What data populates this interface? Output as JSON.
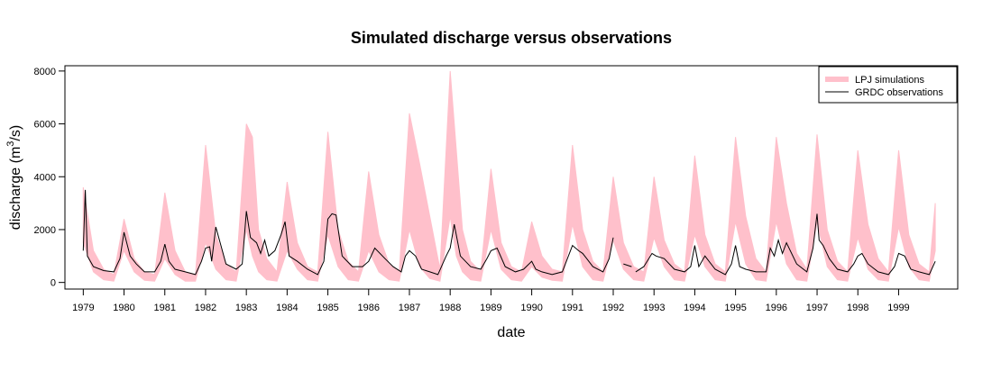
{
  "chart_data": {
    "type": "line",
    "title": "Simulated discharge versus observations",
    "xlabel": "date",
    "ylabel": "discharge (m³/s)",
    "ylabel_parts": {
      "pre": "discharge (m",
      "sup": "3",
      "post": "/s)"
    },
    "xlim": [
      1978.55,
      2000.45
    ],
    "ylim": [
      -250,
      8200
    ],
    "x_ticks": [
      1979,
      1980,
      1981,
      1982,
      1983,
      1984,
      1985,
      1986,
      1987,
      1988,
      1989,
      1990,
      1991,
      1992,
      1993,
      1994,
      1995,
      1996,
      1997,
      1998,
      1999
    ],
    "x_tick_labels": [
      "1979",
      "1980",
      "1981",
      "1982",
      "1983",
      "1984",
      "1985",
      "1986",
      "1987",
      "1988",
      "1989",
      "1990",
      "1991",
      "1992",
      "1993",
      "1994",
      "1995",
      "1996",
      "1997",
      "1998",
      "1999"
    ],
    "y_ticks": [
      0,
      2000,
      4000,
      6000,
      8000
    ],
    "y_tick_labels": [
      "0",
      "2000",
      "4000",
      "6000",
      "8000"
    ],
    "grid": false,
    "legend_position": "top-right",
    "series": [
      {
        "name": "LPJ simulations",
        "kind": "band",
        "color": "#ffc0cb",
        "x": [
          1979.0,
          1979.25,
          1979.5,
          1979.75,
          1980.0,
          1980.25,
          1980.5,
          1980.75,
          1981.0,
          1981.25,
          1981.5,
          1981.75,
          1982.0,
          1982.25,
          1982.5,
          1982.75,
          1983.0,
          1983.15,
          1983.3,
          1983.5,
          1983.75,
          1984.0,
          1984.25,
          1984.5,
          1984.75,
          1985.0,
          1985.25,
          1985.5,
          1985.75,
          1986.0,
          1986.25,
          1986.5,
          1986.75,
          1987.0,
          1987.25,
          1987.5,
          1987.75,
          1988.0,
          1988.15,
          1988.3,
          1988.5,
          1988.75,
          1989.0,
          1989.25,
          1989.5,
          1989.75,
          1990.0,
          1990.25,
          1990.5,
          1990.75,
          1991.0,
          1991.25,
          1991.5,
          1991.75,
          1992.0,
          1992.25,
          1992.5,
          1992.75,
          1993.0,
          1993.25,
          1993.5,
          1993.75,
          1994.0,
          1994.25,
          1994.5,
          1994.75,
          1995.0,
          1995.25,
          1995.5,
          1995.75,
          1996.0,
          1996.25,
          1996.5,
          1996.75,
          1997.0,
          1997.25,
          1997.5,
          1997.75,
          1998.0,
          1998.25,
          1998.5,
          1998.75,
          1999.0,
          1999.25,
          1999.5,
          1999.75,
          1999.9
        ],
        "low": [
          1500,
          400,
          100,
          50,
          1200,
          400,
          80,
          50,
          900,
          300,
          50,
          50,
          1500,
          500,
          100,
          50,
          2000,
          1000,
          400,
          100,
          50,
          1200,
          500,
          100,
          50,
          1800,
          600,
          100,
          50,
          1200,
          400,
          100,
          50,
          2000,
          600,
          150,
          50,
          2500,
          1000,
          400,
          100,
          50,
          2000,
          500,
          100,
          50,
          600,
          200,
          80,
          50,
          2200,
          600,
          100,
          50,
          1600,
          500,
          100,
          50,
          1700,
          600,
          100,
          50,
          1800,
          600,
          100,
          50,
          2300,
          700,
          100,
          50,
          2300,
          700,
          100,
          50,
          2300,
          600,
          100,
          50,
          1700,
          500,
          100,
          50,
          2100,
          600,
          100,
          50,
          1200
        ],
        "high": [
          3600,
          1200,
          500,
          300,
          2400,
          900,
          400,
          300,
          3400,
          1200,
          400,
          300,
          5200,
          1800,
          700,
          400,
          6000,
          5500,
          2000,
          900,
          400,
          3800,
          1500,
          600,
          400,
          5700,
          2000,
          800,
          400,
          4200,
          1800,
          700,
          400,
          6400,
          4500,
          2500,
          500,
          8000,
          5000,
          2000,
          800,
          400,
          4300,
          1500,
          600,
          400,
          2300,
          1000,
          500,
          400,
          5200,
          2000,
          800,
          400,
          4000,
          1500,
          600,
          400,
          4000,
          1600,
          700,
          400,
          4800,
          1800,
          700,
          400,
          5500,
          2500,
          900,
          400,
          5500,
          3000,
          1100,
          500,
          5600,
          2000,
          800,
          400,
          5000,
          2200,
          900,
          400,
          5000,
          1800,
          700,
          400,
          3000
        ]
      },
      {
        "name": "GRDC observations",
        "kind": "line",
        "color": "#000000",
        "segments": [
          {
            "x": [
              1979.0,
              1979.05,
              1979.1,
              1979.25,
              1979.5,
              1979.75,
              1979.9,
              1980.0,
              1980.15,
              1980.3,
              1980.5,
              1980.75,
              1980.9,
              1981.0,
              1981.1,
              1981.25,
              1981.5,
              1981.75,
              1981.9,
              1982.0,
              1982.1,
              1982.15,
              1982.25,
              1982.5,
              1982.75,
              1982.9,
              1983.0,
              1983.1,
              1983.25,
              1983.35,
              1983.45,
              1983.55,
              1983.7,
              1983.85,
              1983.95,
              1984.05,
              1984.25,
              1984.5,
              1984.75,
              1984.9,
              1985.0,
              1985.1,
              1985.2,
              1985.35,
              1985.6,
              1985.85,
              1986.0,
              1986.15,
              1986.4,
              1986.6,
              1986.8,
              1986.9,
              1987.0,
              1987.15,
              1987.3,
              1987.5,
              1987.7,
              1987.9,
              1988.0,
              1988.1,
              1988.25,
              1988.5,
              1988.75,
              1988.9,
              1989.0,
              1989.15,
              1989.35,
              1989.6,
              1989.8,
              1990.0,
              1990.1,
              1990.25,
              1990.5,
              1990.75,
              1991.0,
              1991.15,
              1991.25,
              1991.35,
              1991.5,
              1991.75,
              1991.9,
              1992.0
            ],
            "y": [
              1200,
              3500,
              1000,
              600,
              450,
              400,
              900,
              1900,
              1000,
              700,
              400,
              400,
              800,
              1450,
              800,
              500,
              400,
              300,
              800,
              1300,
              1350,
              800,
              2100,
              700,
              500,
              700,
              2700,
              1700,
              1500,
              1100,
              1600,
              1000,
              1200,
              1800,
              2300,
              1000,
              800,
              500,
              300,
              800,
              2400,
              2600,
              2550,
              1000,
              600,
              600,
              800,
              1300,
              900,
              600,
              400,
              1000,
              1200,
              1000,
              500,
              400,
              300,
              1000,
              1300,
              2200,
              1000,
              600,
              500,
              900,
              1200,
              1300,
              600,
              400,
              500,
              800,
              500,
              400,
              300,
              400,
              1400,
              1200,
              1100,
              900,
              600,
              400,
              900,
              1700
            ]
          },
          {
            "x": [
              1992.25,
              1992.45
            ],
            "y": [
              700,
              600
            ]
          },
          {
            "x": [
              1992.55,
              1992.75,
              1992.95,
              1993.05,
              1993.25,
              1993.5,
              1993.75,
              1993.9,
              1994.0,
              1994.1,
              1994.25,
              1994.5,
              1994.75,
              1994.9,
              1995.0,
              1995.1,
              1995.25,
              1995.5,
              1995.75,
              1995.85,
              1995.95,
              1996.05,
              1996.15,
              1996.25,
              1996.5,
              1996.75,
              1996.9,
              1997.0,
              1997.05,
              1997.15,
              1997.3,
              1997.5,
              1997.75,
              1997.9,
              1998.0,
              1998.1,
              1998.25,
              1998.5,
              1998.75,
              1998.9,
              1999.0,
              1999.15,
              1999.3,
              1999.5,
              1999.75,
              1999.9
            ],
            "y": [
              400,
              600,
              1100,
              1000,
              900,
              500,
              400,
              600,
              1400,
              600,
              1000,
              500,
              300,
              700,
              1400,
              600,
              500,
              400,
              400,
              1300,
              1000,
              1600,
              1100,
              1500,
              700,
              400,
              1300,
              2600,
              1600,
              1400,
              900,
              500,
              400,
              700,
              1000,
              1100,
              700,
              400,
              300,
              600,
              1100,
              1000,
              500,
              400,
              300,
              800
            ]
          }
        ]
      }
    ]
  }
}
